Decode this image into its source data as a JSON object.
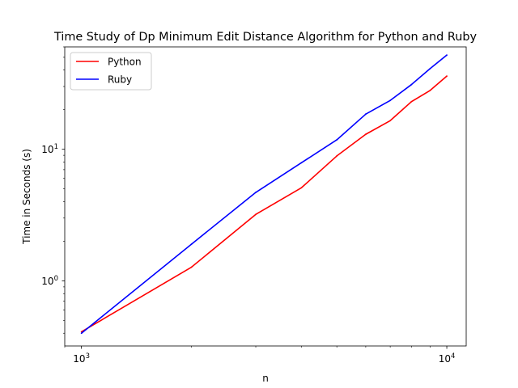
{
  "chart_data": {
    "type": "line",
    "title": "Time Study of Dp Minimum Edit Distance Algorithm for Python and Ruby",
    "xlabel": "n",
    "ylabel": "Time in Seconds (s)",
    "xscale": "log",
    "yscale": "log",
    "xlim": [
      900,
      11300
    ],
    "ylim": [
      0.32,
      60
    ],
    "x": [
      1000,
      2000,
      3000,
      4000,
      5000,
      6000,
      7000,
      8000,
      9000,
      10000
    ],
    "series": [
      {
        "name": "Python",
        "color": "#ff0000",
        "values": [
          0.41,
          1.27,
          3.2,
          5.1,
          8.9,
          13.0,
          16.5,
          23.0,
          28.0,
          36.0
        ]
      },
      {
        "name": "Ruby",
        "color": "#0000ff",
        "values": [
          0.4,
          1.9,
          4.7,
          7.9,
          11.8,
          18.5,
          23.5,
          31.0,
          41.0,
          52.0
        ]
      }
    ],
    "xticks": [
      {
        "value": 1000,
        "base": "10",
        "exp": "3"
      },
      {
        "value": 10000,
        "base": "10",
        "exp": "4"
      }
    ],
    "yticks": [
      {
        "value": 1,
        "base": "10",
        "exp": "0"
      },
      {
        "value": 10,
        "base": "10",
        "exp": "1"
      }
    ],
    "grid": false,
    "legend": "top-left"
  }
}
